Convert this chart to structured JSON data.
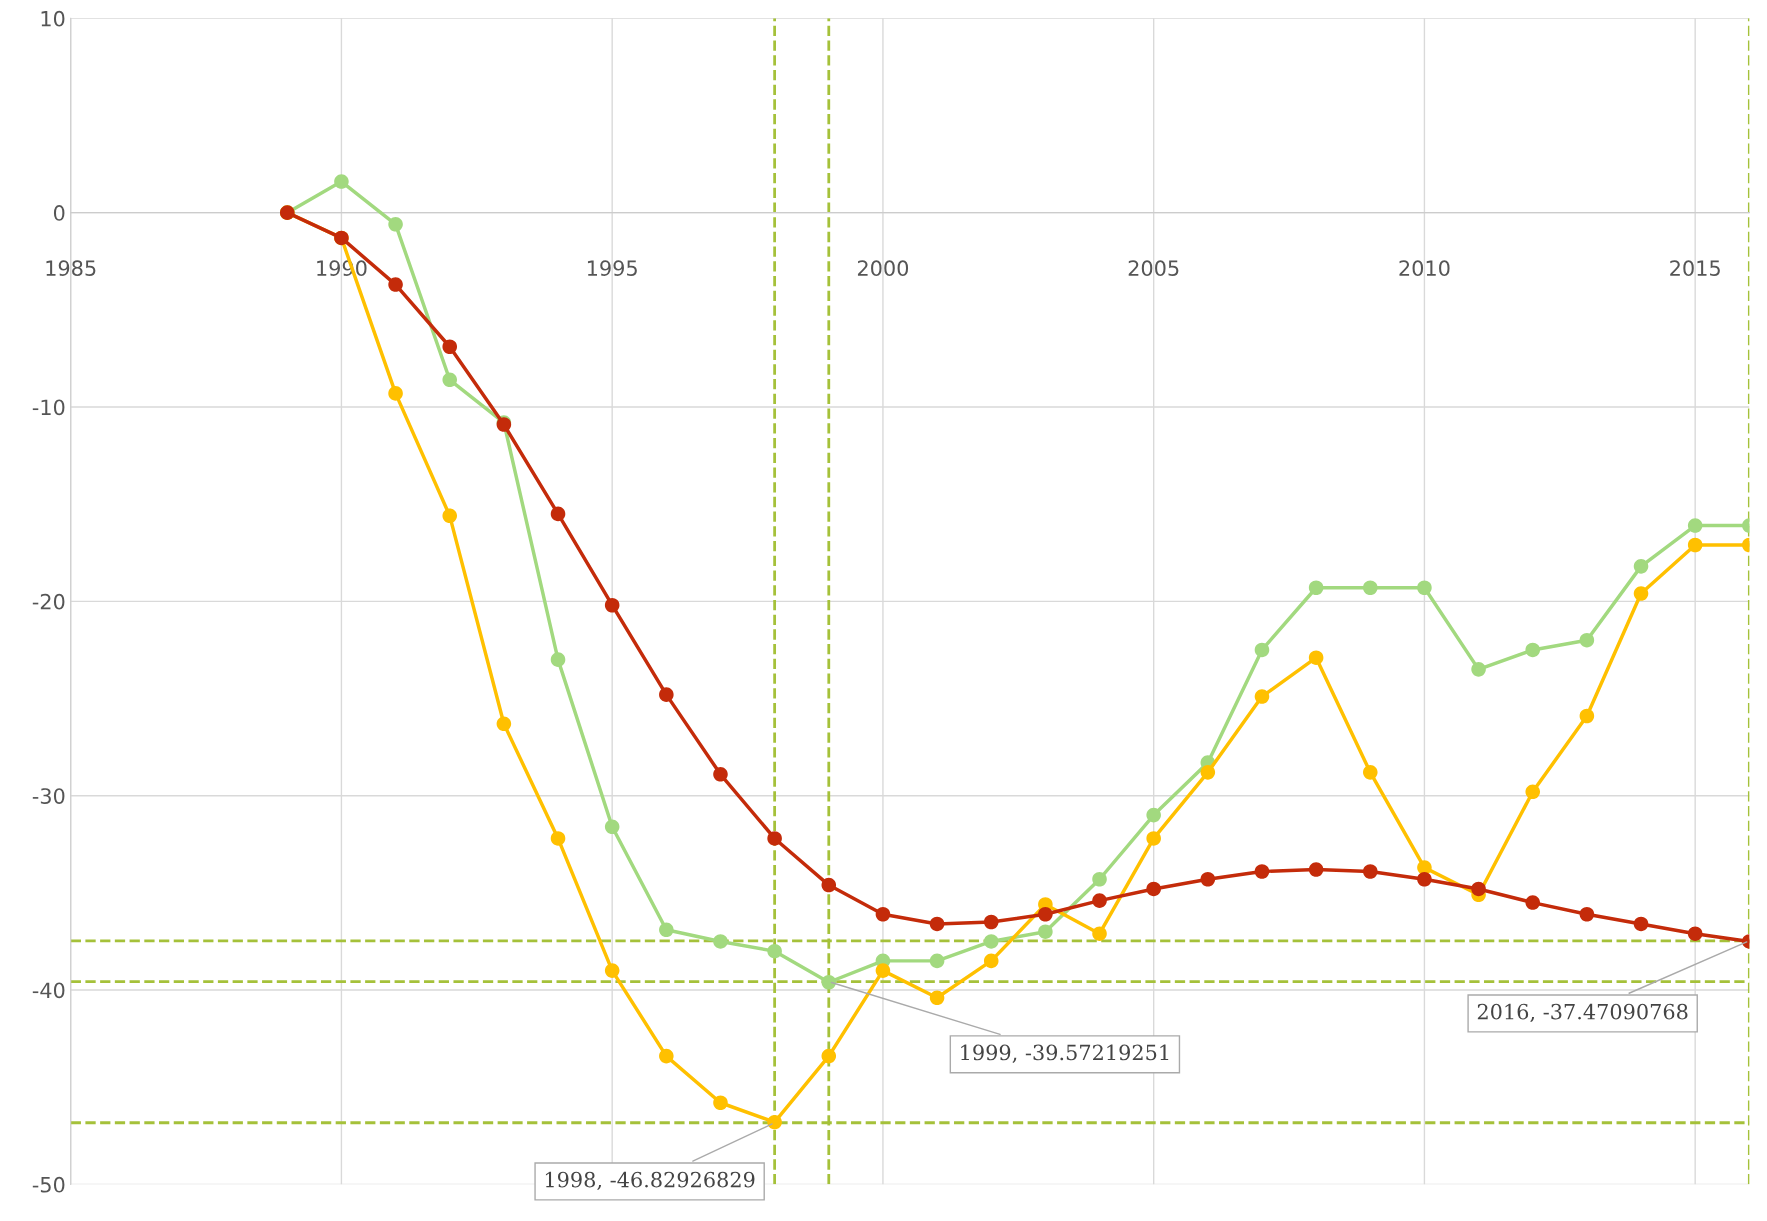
{
  "chart_data": {
    "type": "line",
    "x": [
      1989,
      1990,
      1991,
      1992,
      1993,
      1994,
      1995,
      1996,
      1997,
      1998,
      1999,
      2000,
      2001,
      2002,
      2003,
      2004,
      2005,
      2006,
      2007,
      2008,
      2009,
      2010,
      2011,
      2012,
      2013,
      2014,
      2015,
      2016
    ],
    "series": [
      {
        "color": "#a2d97f",
        "values": [
          0,
          1.6,
          -0.6,
          -8.6,
          -10.8,
          -23.0,
          -31.6,
          -36.9,
          -37.5,
          -38.0,
          -39.6,
          -38.5,
          -38.5,
          -37.5,
          -37.0,
          -34.3,
          -31.0,
          -28.3,
          -22.5,
          -19.3,
          -19.3,
          -19.3,
          -23.5,
          -22.5,
          -22.0,
          -18.2,
          -16.1,
          -16.1
        ]
      },
      {
        "color": "#ffc000",
        "values": [
          0,
          -1.3,
          -9.3,
          -15.6,
          -26.3,
          -32.2,
          -39.0,
          -43.4,
          -45.8,
          -46.8,
          -43.4,
          -39.0,
          -40.4,
          -38.5,
          -35.6,
          -37.1,
          -32.2,
          -28.8,
          -24.9,
          -22.9,
          -28.8,
          -33.7,
          -35.1,
          -29.8,
          -25.9,
          -19.6,
          -17.1,
          -17.1
        ]
      },
      {
        "color": "#c42b0a",
        "values": [
          0,
          -1.3,
          -3.7,
          -6.9,
          -10.9,
          -15.5,
          -20.2,
          -24.8,
          -28.9,
          -32.2,
          -34.6,
          -36.1,
          -36.6,
          -36.5,
          -36.1,
          -35.4,
          -34.8,
          -34.3,
          -33.9,
          -33.8,
          -33.9,
          -34.3,
          -34.8,
          -35.5,
          -36.1,
          -36.6,
          -37.1,
          -37.5
        ]
      }
    ],
    "xlim": [
      1985,
      2016
    ],
    "xticks": [
      1985,
      1990,
      1995,
      2000,
      2005,
      2010,
      2015
    ],
    "ylim": [
      -50,
      10
    ],
    "yticks": [
      -50,
      -40,
      -30,
      -20,
      -10,
      0,
      10
    ],
    "grid": true,
    "marker": "circle",
    "line_style": "solid",
    "legend": false,
    "ref_lines": [
      {
        "axis": "x",
        "value": 1998,
        "color": "#a5c13a",
        "line_style": "dashed"
      },
      {
        "axis": "x",
        "value": 1999,
        "color": "#a5c13a",
        "line_style": "dashed"
      },
      {
        "axis": "x",
        "value": 2016,
        "color": "#a5c13a",
        "line_style": "dashed"
      },
      {
        "axis": "y",
        "value": -46.82926829,
        "color": "#a5c13a",
        "line_style": "dashed"
      },
      {
        "axis": "y",
        "value": -39.57219251,
        "color": "#a5c13a",
        "line_style": "dashed"
      },
      {
        "axis": "y",
        "value": -37.47090768,
        "color": "#a5c13a",
        "line_style": "dashed"
      }
    ],
    "annotations": [
      {
        "text": "1998, -46.82926829",
        "x": 1998,
        "y": -46.82926829
      },
      {
        "text": "1999, -39.57219251",
        "x": 1999,
        "y": -39.57219251
      },
      {
        "text": "2016, -37.47090768",
        "x": 2016,
        "y": -37.47090768
      }
    ]
  }
}
